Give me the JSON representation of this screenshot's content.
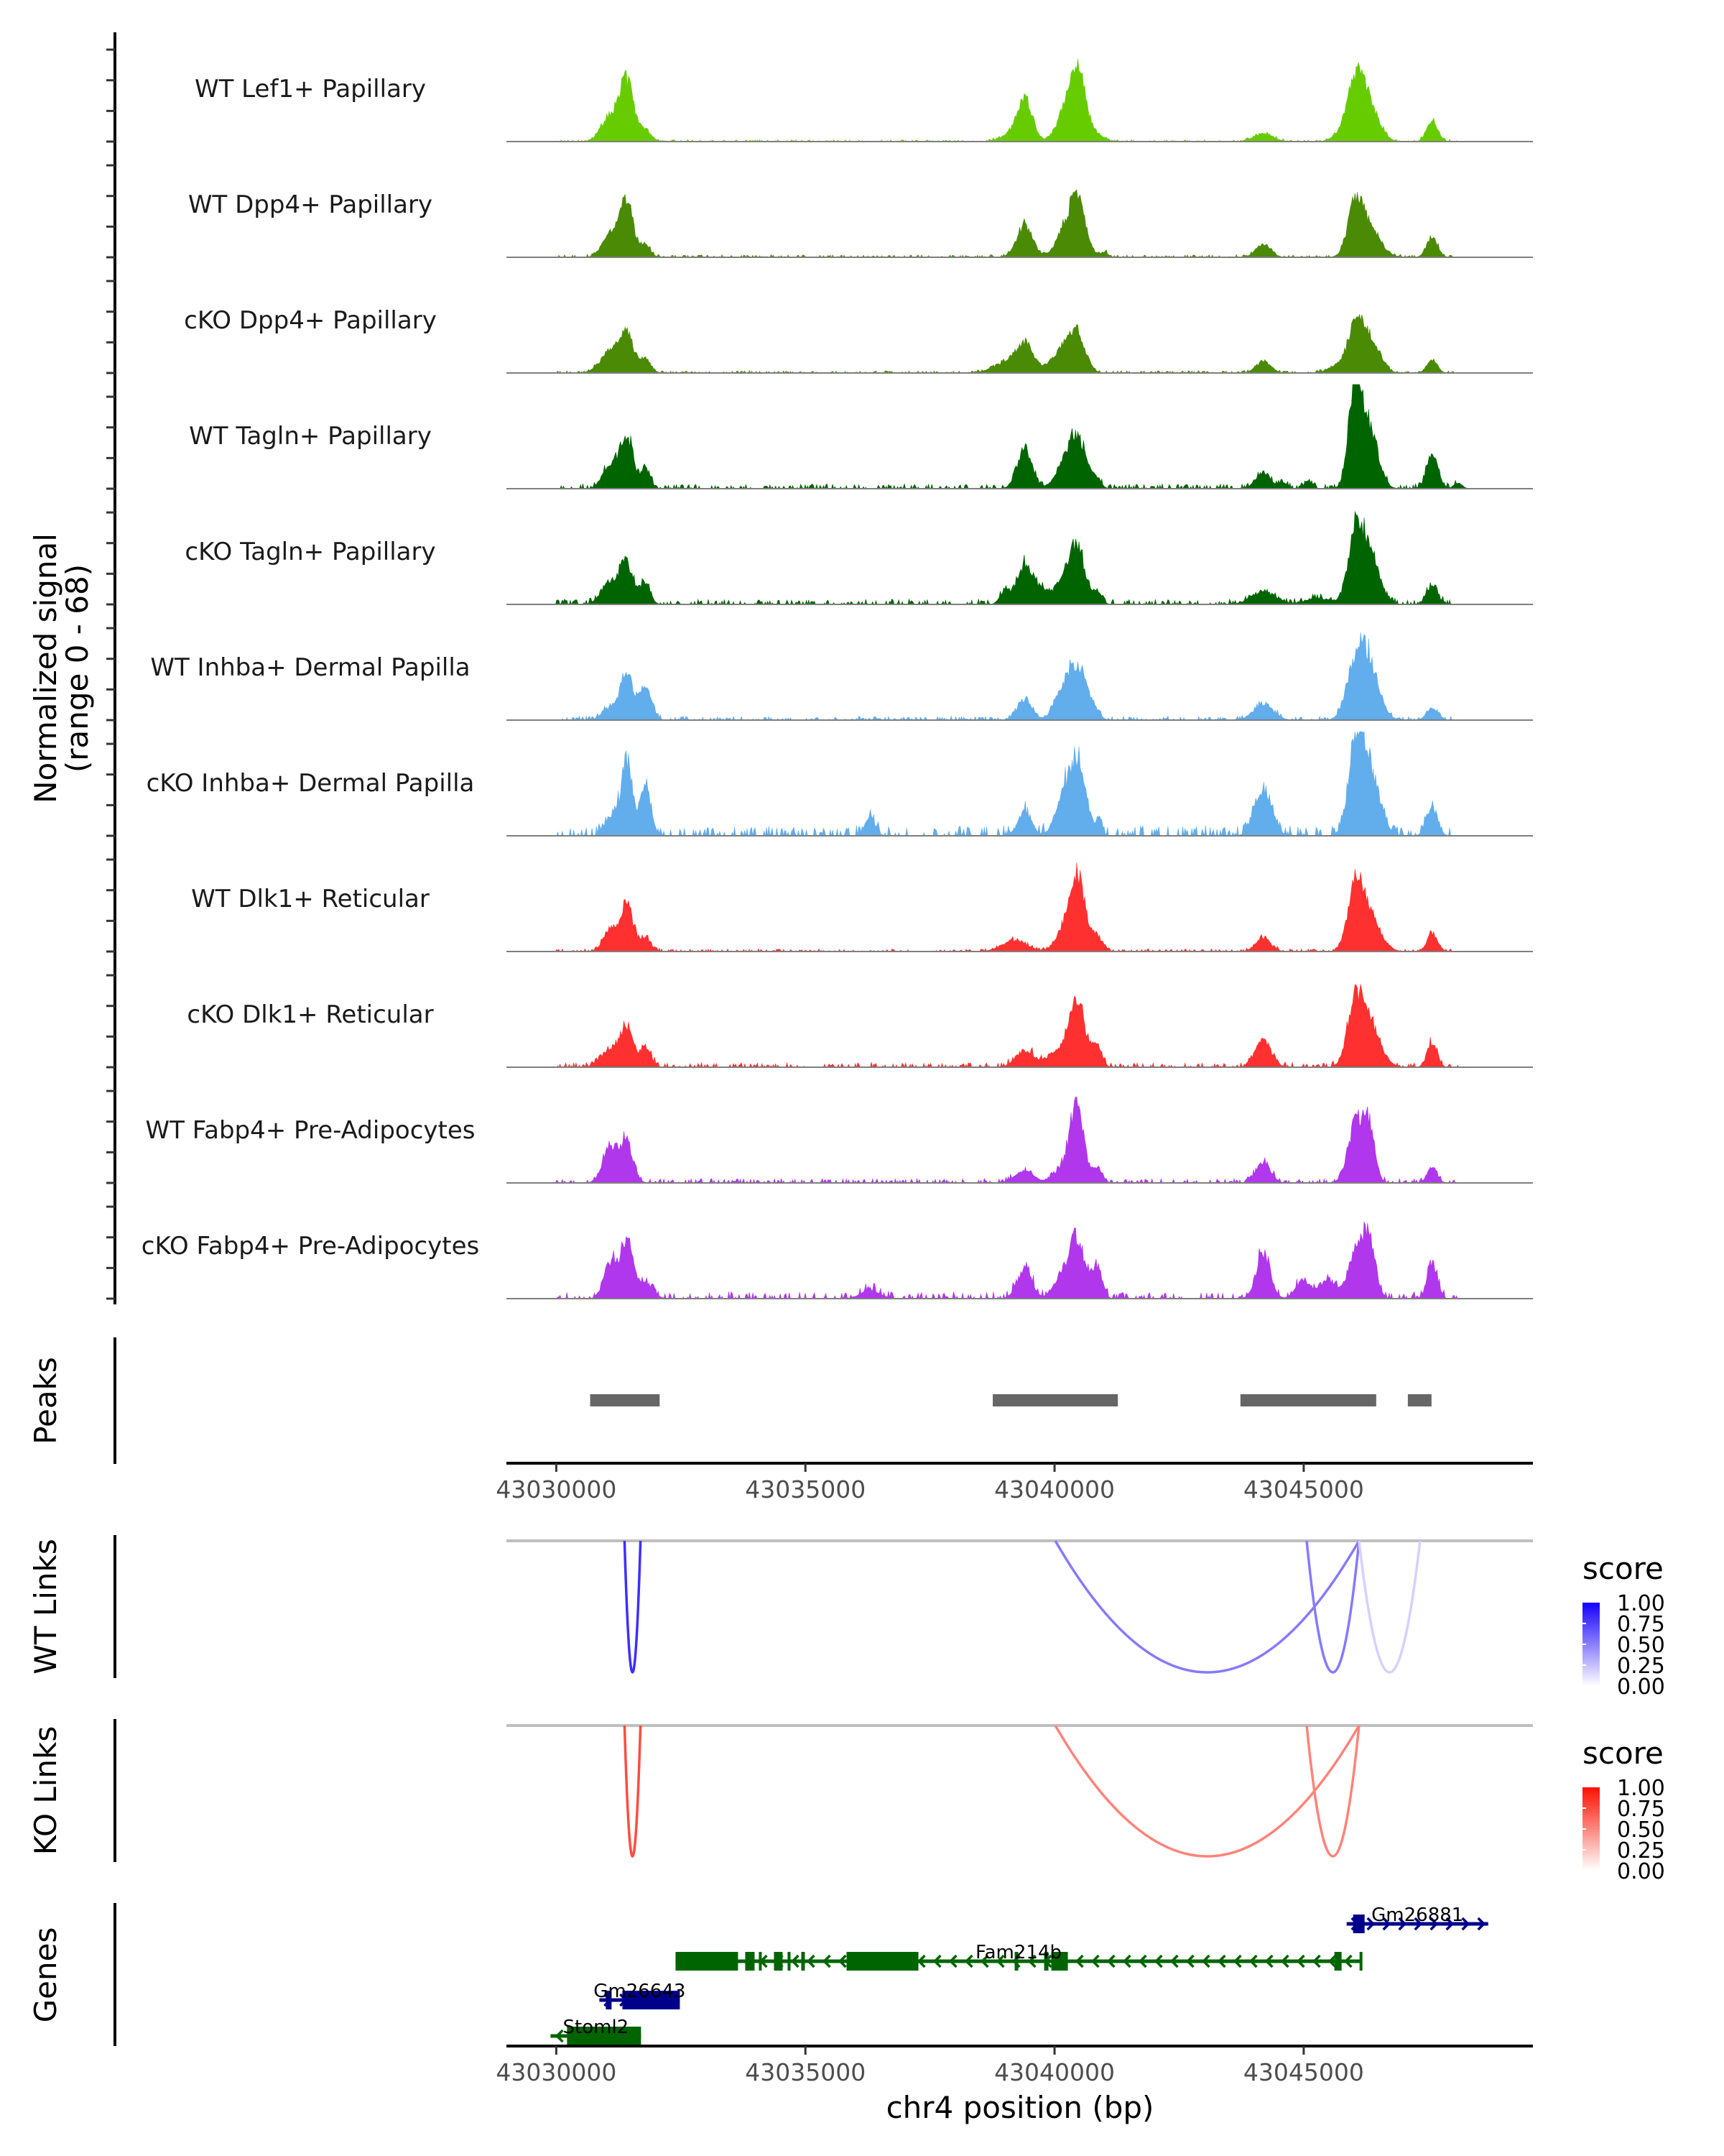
{
  "chart_data": {
    "type": "area",
    "title": "",
    "chromosome": "chr4",
    "xlabel": "chr4 position (bp)",
    "ylabel": "Normalized signal\n(range 0 - 68)",
    "ylabel_lines": [
      "Normalized signal",
      "(range 0 - 68)"
    ],
    "ylim": [
      0,
      68
    ],
    "xlim": [
      43029000,
      43049600
    ],
    "x_ticks": [
      43030000,
      43035000,
      43040000,
      43045000
    ],
    "x_tick_labels": [
      "43030000",
      "43035000",
      "43040000",
      "43045000"
    ],
    "coverage_tracks": [
      {
        "name": "WT Lef1+ Papillary",
        "color": "#66CC00",
        "background": 0.6,
        "peaks": [
          [
            43031080,
            16,
            180
          ],
          [
            43031413,
            38,
            140
          ],
          [
            43031788,
            7,
            120
          ],
          [
            43039401,
            26,
            150
          ],
          [
            43039100,
            4,
            200
          ],
          [
            43040108,
            9,
            150
          ],
          [
            43040440,
            50,
            170
          ],
          [
            43040850,
            4,
            150
          ],
          [
            43044189,
            5,
            200
          ],
          [
            43045700,
            4,
            150
          ],
          [
            43046035,
            37,
            160
          ],
          [
            43046309,
            23,
            200
          ],
          [
            43047578,
            14,
            110
          ]
        ]
      },
      {
        "name": "WT Dpp4+ Papillary",
        "color": "#4A8A05",
        "background": 0.8,
        "peaks": [
          [
            43031080,
            15,
            160
          ],
          [
            43031413,
            36,
            130
          ],
          [
            43031788,
            8,
            100
          ],
          [
            43039401,
            21,
            160
          ],
          [
            43040108,
            10,
            150
          ],
          [
            43040440,
            40,
            170
          ],
          [
            43041000,
            3,
            80
          ],
          [
            43044189,
            8,
            150
          ],
          [
            43046035,
            30,
            150
          ],
          [
            43046309,
            19,
            220
          ],
          [
            43047578,
            13,
            110
          ]
        ]
      },
      {
        "name": "cKO Dpp4+ Papillary",
        "color": "#4A8A05",
        "background": 0.7,
        "peaks": [
          [
            43031080,
            13,
            200
          ],
          [
            43031413,
            24,
            140
          ],
          [
            43031788,
            9,
            110
          ],
          [
            43039000,
            6,
            250
          ],
          [
            43039401,
            18,
            180
          ],
          [
            43040108,
            12,
            200
          ],
          [
            43040440,
            25,
            170
          ],
          [
            43044189,
            7,
            150
          ],
          [
            43045700,
            5,
            200
          ],
          [
            43046035,
            24,
            150
          ],
          [
            43046309,
            22,
            200
          ],
          [
            43047578,
            9,
            100
          ]
        ]
      },
      {
        "name": "WT Tagln+ Papillary",
        "color": "#006400",
        "background": 1.5,
        "peaks": [
          [
            43031080,
            16,
            150
          ],
          [
            43031413,
            33,
            130
          ],
          [
            43031788,
            12,
            100
          ],
          [
            43039401,
            25,
            150
          ],
          [
            43040108,
            10,
            150
          ],
          [
            43040440,
            35,
            170
          ],
          [
            43040820,
            6,
            100
          ],
          [
            43044189,
            10,
            150
          ],
          [
            43044600,
            4,
            80
          ],
          [
            43045100,
            5,
            80
          ],
          [
            43046035,
            65,
            130
          ],
          [
            43046309,
            38,
            180
          ],
          [
            43047578,
            23,
            110
          ],
          [
            43048100,
            4,
            80
          ]
        ]
      },
      {
        "name": "cKO Tagln+ Papillary",
        "color": "#006400",
        "background": 1.6,
        "peaks": [
          [
            43031080,
            13,
            180
          ],
          [
            43031413,
            25,
            140
          ],
          [
            43031788,
            14,
            100
          ],
          [
            43039000,
            8,
            100
          ],
          [
            43039401,
            25,
            160
          ],
          [
            43039700,
            6,
            150
          ],
          [
            43040108,
            10,
            200
          ],
          [
            43040440,
            36,
            170
          ],
          [
            43040850,
            6,
            100
          ],
          [
            43044189,
            8,
            250
          ],
          [
            43045300,
            4,
            250
          ],
          [
            43046035,
            39,
            150
          ],
          [
            43046309,
            33,
            200
          ],
          [
            43047578,
            12,
            110
          ]
        ]
      },
      {
        "name": "WT Inhba+ Dermal Papilla",
        "color": "#62ADEC",
        "background": 1.2,
        "peaks": [
          [
            43031080,
            8,
            150
          ],
          [
            43031413,
            32,
            120
          ],
          [
            43031788,
            23,
            120
          ],
          [
            43039401,
            13,
            150
          ],
          [
            43040108,
            12,
            150
          ],
          [
            43040440,
            35,
            200
          ],
          [
            43040800,
            4,
            100
          ],
          [
            43044189,
            10,
            200
          ],
          [
            43046035,
            31,
            180
          ],
          [
            43046309,
            34,
            200
          ],
          [
            43047578,
            8,
            110
          ]
        ]
      },
      {
        "name": "cKO Inhba+ Dermal Papilla",
        "color": "#62ADEC",
        "background": 3.0,
        "peaks": [
          [
            43031080,
            12,
            120
          ],
          [
            43031413,
            50,
            110
          ],
          [
            43031788,
            31,
            110
          ],
          [
            43036300,
            12,
            100
          ],
          [
            43039401,
            15,
            140
          ],
          [
            43040108,
            14,
            150
          ],
          [
            43040440,
            50,
            180
          ],
          [
            43040900,
            10,
            60
          ],
          [
            43044189,
            30,
            170
          ],
          [
            43046035,
            46,
            150
          ],
          [
            43046309,
            44,
            200
          ],
          [
            43047578,
            18,
            110
          ]
        ]
      },
      {
        "name": "WT Dlk1+ Reticular",
        "color": "#FF3030",
        "background": 0.8,
        "peaks": [
          [
            43031080,
            14,
            140
          ],
          [
            43031413,
            30,
            130
          ],
          [
            43031788,
            9,
            110
          ],
          [
            43039200,
            7,
            250
          ],
          [
            43040108,
            8,
            150
          ],
          [
            43040440,
            51,
            160
          ],
          [
            43040850,
            9,
            120
          ],
          [
            43044189,
            9,
            150
          ],
          [
            43046035,
            37,
            150
          ],
          [
            43046309,
            23,
            220
          ],
          [
            43047578,
            12,
            100
          ]
        ]
      },
      {
        "name": "cKO Dlk1+ Reticular",
        "color": "#FF3030",
        "background": 1.5,
        "peaks": [
          [
            43031080,
            12,
            180
          ],
          [
            43031413,
            24,
            130
          ],
          [
            43031788,
            13,
            110
          ],
          [
            43039401,
            11,
            180
          ],
          [
            43039850,
            4,
            150
          ],
          [
            43040108,
            8,
            150
          ],
          [
            43040440,
            44,
            160
          ],
          [
            43040850,
            12,
            100
          ],
          [
            43044189,
            17,
            160
          ],
          [
            43046035,
            34,
            160
          ],
          [
            43046309,
            27,
            220
          ],
          [
            43047578,
            16,
            100
          ]
        ]
      },
      {
        "name": "WT Fabp4+ Pre-Adipocytes",
        "color": "#B037EB",
        "background": 1.4,
        "peaks": [
          [
            43031080,
            23,
            150
          ],
          [
            43031413,
            26,
            130
          ],
          [
            43039401,
            7,
            200
          ],
          [
            43040108,
            8,
            150
          ],
          [
            43040440,
            50,
            140
          ],
          [
            43040850,
            10,
            100
          ],
          [
            43044189,
            13,
            150
          ],
          [
            43046035,
            37,
            150
          ],
          [
            43046309,
            34,
            120
          ],
          [
            43047578,
            10,
            100
          ]
        ]
      },
      {
        "name": "cKO Fabp4+ Pre-Adipocytes",
        "color": "#B037EB",
        "background": 2.2,
        "peaks": [
          [
            43031080,
            23,
            130
          ],
          [
            43031413,
            35,
            130
          ],
          [
            43031788,
            10,
            150
          ],
          [
            43036300,
            5,
            200
          ],
          [
            43039401,
            19,
            150
          ],
          [
            43040108,
            12,
            150
          ],
          [
            43040440,
            36,
            160
          ],
          [
            43040850,
            21,
            100
          ],
          [
            43044189,
            30,
            140
          ],
          [
            43045000,
            12,
            150
          ],
          [
            43045500,
            12,
            150
          ],
          [
            43046035,
            30,
            150
          ],
          [
            43046309,
            38,
            130
          ],
          [
            43047578,
            24,
            100
          ]
        ]
      }
    ],
    "peaks_track": {
      "label": "Peaks",
      "color": "#666666",
      "regions": [
        [
          43030680,
          43032075
        ],
        [
          43038760,
          43041270
        ],
        [
          43043730,
          43046455
        ],
        [
          43047090,
          43047565
        ]
      ]
    },
    "link_tracks": [
      {
        "label": "WT Links",
        "low_color": "#FFFFFF",
        "high_color": "#1400FF",
        "links": [
          [
            43031370,
            43031690,
            0.82
          ],
          [
            43040015,
            43046110,
            0.52
          ],
          [
            43045060,
            43046110,
            0.52
          ],
          [
            43046110,
            43047335,
            0.18
          ]
        ]
      },
      {
        "label": "KO Links",
        "low_color": "#FFFFFF",
        "high_color": "#FF1000",
        "links": [
          [
            43031370,
            43031690,
            0.75
          ],
          [
            43040015,
            43046110,
            0.52
          ],
          [
            43045060,
            43046110,
            0.52
          ]
        ]
      }
    ],
    "legends": [
      {
        "title": "score",
        "ticks": [
          "1.00",
          "0.75",
          "0.50",
          "0.25",
          "0.00"
        ],
        "low_color": "#FFFFFF",
        "high_color": "#1400FF"
      },
      {
        "title": "score",
        "ticks": [
          "1.00",
          "0.75",
          "0.50",
          "0.25",
          "0.00"
        ],
        "low_color": "#FFFFFF",
        "high_color": "#FF1000"
      }
    ],
    "genes_track": {
      "label": "Genes",
      "genes": [
        {
          "name": "Gm26881",
          "strand": "+",
          "color": "#00008B",
          "row": 0,
          "start": 43045862,
          "end": 43048703,
          "exons": [
            [
              43045991,
              43046222
            ]
          ]
        },
        {
          "name": "Fam214b",
          "strand": "-",
          "color": "#006400",
          "row": 1,
          "start": 43032394,
          "end": 43046164,
          "exons": [
            [
              43032394,
              43033648
            ],
            [
              43033792,
              43033980
            ],
            [
              43034066,
              43034110
            ],
            [
              43034369,
              43034542
            ],
            [
              43034643,
              43034701
            ],
            [
              43034917,
              43034989
            ],
            [
              43035826,
              43037268
            ],
            [
              43039200,
              43039272
            ],
            [
              43039791,
              43039877
            ],
            [
              43039935,
              43040267
            ],
            [
              43045616,
              43045760
            ],
            [
              43046121,
              43046164
            ]
          ]
        },
        {
          "name": "Gm26643",
          "strand": "+",
          "color": "#00008B",
          "row": 2,
          "start": 43030865,
          "end": 43032480,
          "exons": [
            [
              43030995,
              43031110
            ],
            [
              43031327,
              43032480
            ]
          ]
        },
        {
          "name": "Stoml2",
          "strand": "-",
          "color": "#006400",
          "row": 3,
          "start": 43029885,
          "end": 43031701,
          "exons": [
            [
              43030216,
              43031701
            ]
          ]
        }
      ]
    }
  }
}
